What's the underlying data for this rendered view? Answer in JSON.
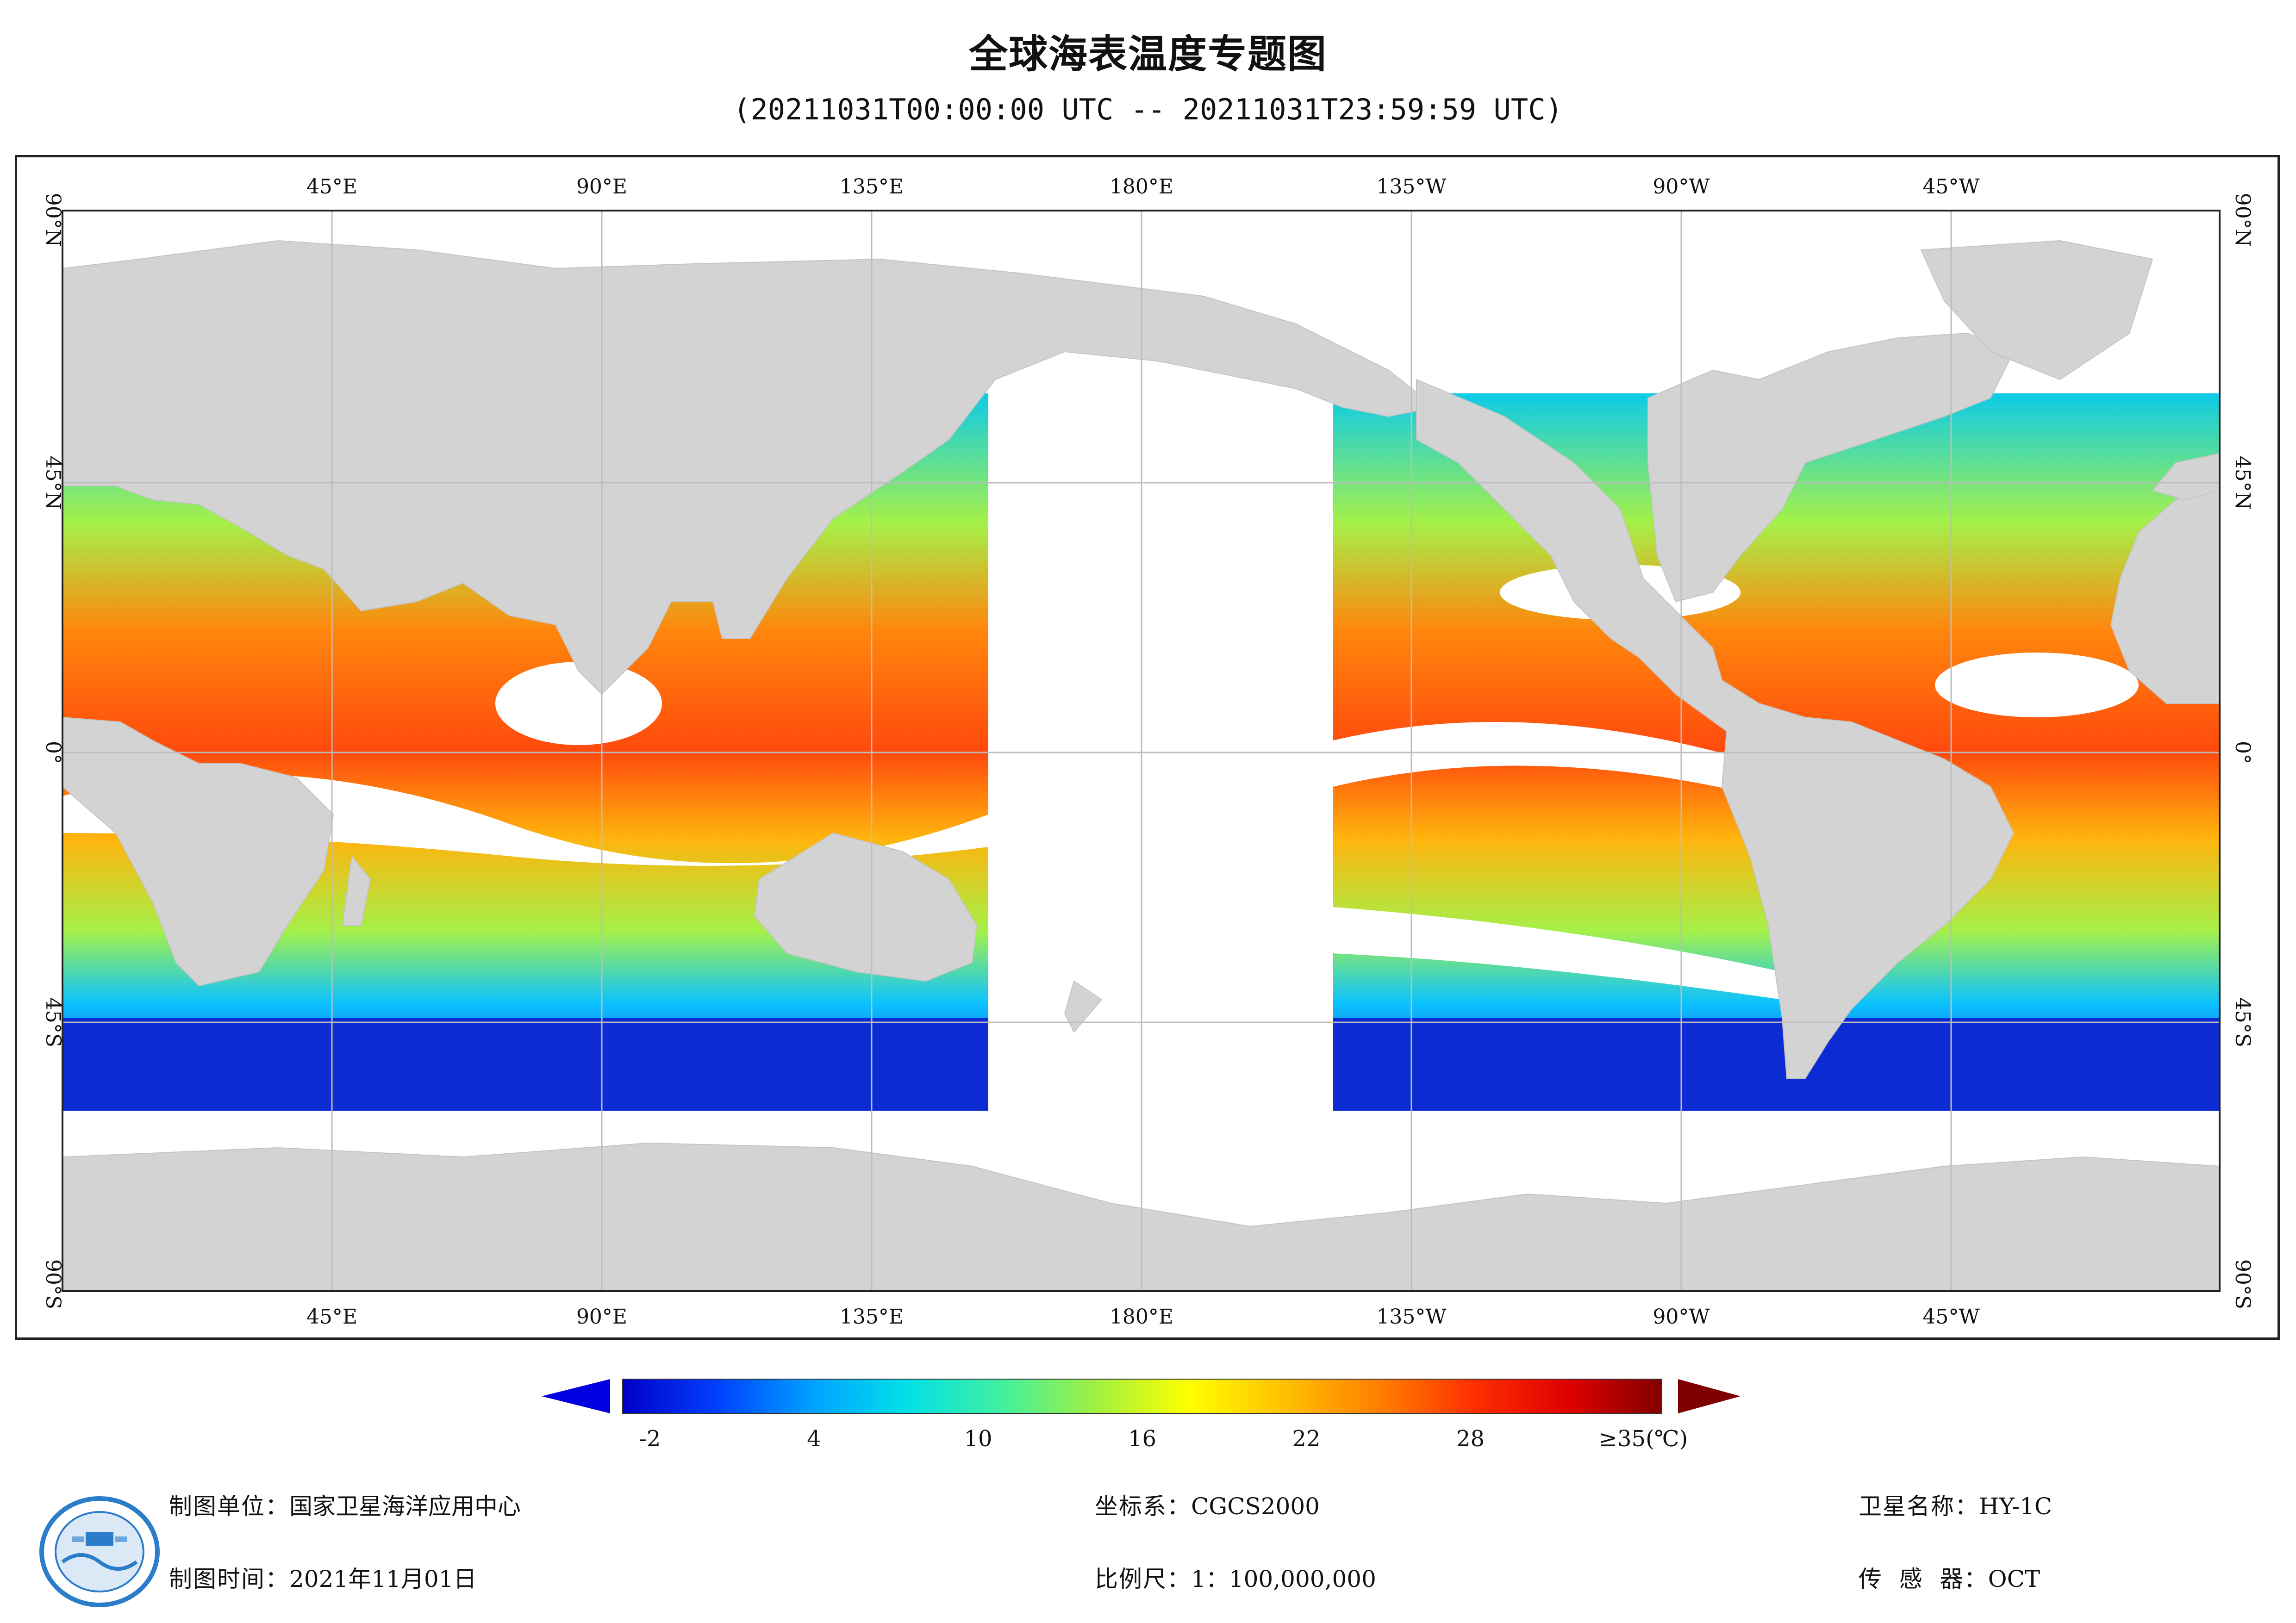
{
  "title": "全球海表温度专题图",
  "subtitle": "(20211031T00:00:00 UTC -- 20211031T23:59:59 UTC)",
  "map": {
    "top_lon_labels": [
      "45°E",
      "90°E",
      "135°E",
      "180°E",
      "135°W",
      "90°W",
      "45°W"
    ],
    "bottom_lon_labels": [
      "45°E",
      "90°E",
      "135°E",
      "180°E",
      "135°W",
      "90°W",
      "45°W"
    ],
    "lat_labels": [
      "90°N",
      "45°N",
      "0°",
      "45°S",
      "90°S"
    ],
    "land_color": "#d3d3d3",
    "no_data_color": "#ffffff",
    "grid_color": "#bdbdbd"
  },
  "colorbar": {
    "tick_labels": [
      "-2",
      "4",
      "10",
      "16",
      "22",
      "28",
      "≥35(℃)"
    ],
    "ticks_values": [
      -2,
      4,
      10,
      16,
      22,
      28,
      35
    ],
    "range": [
      -3,
      35
    ],
    "unit": "℃",
    "stops": [
      "#0000c8",
      "#0040ff",
      "#00a0ff",
      "#00e0e8",
      "#40f0a0",
      "#a0f040",
      "#ffff00",
      "#ffc000",
      "#ff8000",
      "#ff3000",
      "#e00000",
      "#800000"
    ],
    "under_color": "#0000e0",
    "over_color": "#800000"
  },
  "footer": {
    "org_label": "制图单位：",
    "org_value": "国家卫星海洋应用中心",
    "date_label": "制图时间：",
    "date_value": "2021年11月01日",
    "crs_label": "坐标系：",
    "crs_value": "CGCS2000",
    "scale_label": "比例尺：",
    "scale_value": "1：100,000,000",
    "satellite_label": "卫星名称：",
    "satellite_value": "HY-1C",
    "sensor_label": "传  感  器：",
    "sensor_value": "OCT",
    "logo_icon": "nsoas-logo-icon"
  }
}
